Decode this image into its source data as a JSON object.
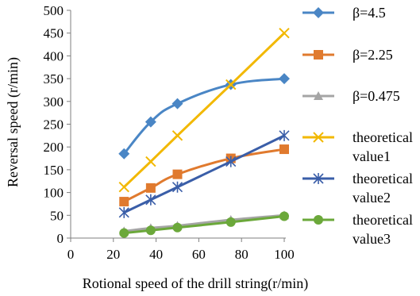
{
  "chart_data": {
    "type": "line",
    "xlabel": "Rotional speed of the drill string(r/min)",
    "ylabel": "Reversal speed (r/min)",
    "xlim": [
      0,
      100
    ],
    "ylim": [
      0,
      500
    ],
    "xticks": [
      0,
      20,
      40,
      60,
      80,
      100
    ],
    "yticks": [
      0,
      50,
      100,
      150,
      200,
      250,
      300,
      350,
      400,
      450,
      500
    ],
    "grid": false,
    "legend": "right",
    "series": [
      {
        "name": "β=4.5",
        "color": "#4a86c5",
        "marker": "diamond",
        "smooth": true,
        "x": [
          25,
          37.5,
          50,
          75,
          100
        ],
        "y": [
          185,
          255,
          295,
          337,
          350
        ]
      },
      {
        "name": "β=2.25",
        "color": "#e07a2e",
        "marker": "square",
        "smooth": true,
        "x": [
          25,
          37.5,
          50,
          75,
          100
        ],
        "y": [
          80,
          110,
          140,
          175,
          195
        ]
      },
      {
        "name": "β=0.475",
        "color": "#a5a5a5",
        "marker": "triangle",
        "smooth": true,
        "x": [
          25,
          37.5,
          50,
          75,
          100
        ],
        "y": [
          15,
          22,
          27,
          40,
          50
        ]
      },
      {
        "name": [
          "theoretical",
          "value1"
        ],
        "color": "#f2b800",
        "marker": "x",
        "smooth": false,
        "x": [
          25,
          37.5,
          50,
          75,
          100
        ],
        "y": [
          112,
          168,
          225,
          337,
          450
        ]
      },
      {
        "name": [
          "theoretical",
          "value2"
        ],
        "color": "#3a5ea8",
        "marker": "star",
        "smooth": false,
        "x": [
          25,
          37.5,
          50,
          75,
          100
        ],
        "y": [
          56,
          84,
          112,
          168,
          225
        ]
      },
      {
        "name": [
          "theoretical",
          "value3"
        ],
        "color": "#6ba83a",
        "marker": "circle",
        "smooth": false,
        "x": [
          25,
          37.5,
          50,
          75,
          100
        ],
        "y": [
          11,
          17,
          23,
          35,
          48
        ]
      }
    ]
  }
}
